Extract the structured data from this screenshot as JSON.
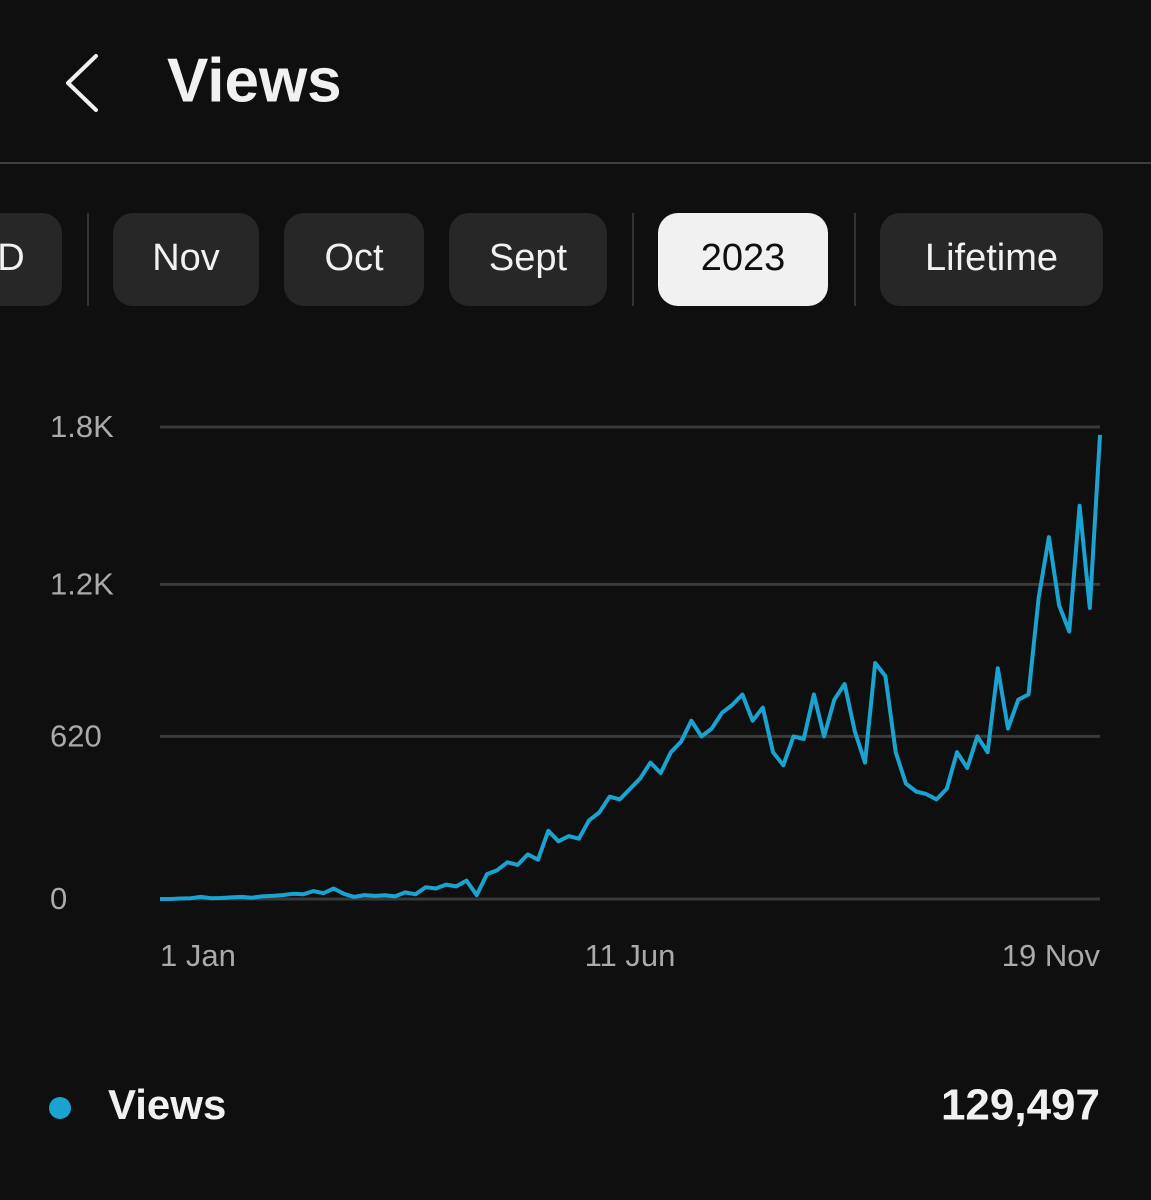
{
  "header": {
    "title": "Views"
  },
  "tabs": [
    {
      "label": "D",
      "active": false
    },
    {
      "label": "Nov",
      "active": false
    },
    {
      "label": "Oct",
      "active": false
    },
    {
      "label": "Sept",
      "active": false
    },
    {
      "label": "2023",
      "active": true
    },
    {
      "label": "Lifetime",
      "active": false
    }
  ],
  "chart_data": {
    "type": "line",
    "x": [
      "1 Jan",
      null,
      null,
      null,
      null,
      null,
      null,
      null,
      null,
      null,
      null,
      null,
      null,
      null,
      null,
      null,
      null,
      null,
      null,
      null,
      null,
      null,
      null,
      null,
      null,
      null,
      null,
      null,
      null,
      null,
      null,
      null,
      null,
      null,
      null,
      null,
      null,
      null,
      null,
      null,
      null,
      null,
      null,
      null,
      null,
      null,
      "11 Jun",
      null,
      null,
      null,
      null,
      null,
      null,
      null,
      null,
      null,
      null,
      null,
      null,
      null,
      null,
      null,
      null,
      null,
      null,
      null,
      null,
      null,
      null,
      null,
      null,
      null,
      null,
      null,
      null,
      null,
      null,
      null,
      null,
      null,
      null,
      null,
      null,
      null,
      null,
      null,
      null,
      null,
      null,
      null,
      null,
      null,
      "19 Nov"
    ],
    "series": [
      {
        "name": "Views",
        "color": "#1aa3d1",
        "values": [
          0,
          0,
          2,
          3,
          8,
          3,
          4,
          6,
          8,
          5,
          10,
          12,
          15,
          20,
          18,
          30,
          22,
          40,
          20,
          8,
          15,
          12,
          14,
          10,
          25,
          18,
          45,
          40,
          55,
          48,
          70,
          15,
          95,
          110,
          140,
          130,
          170,
          150,
          260,
          220,
          240,
          230,
          300,
          330,
          390,
          380,
          420,
          460,
          520,
          480,
          560,
          600,
          680,
          620,
          650,
          710,
          740,
          780,
          680,
          730,
          560,
          510,
          620,
          610,
          780,
          620,
          760,
          820,
          640,
          520,
          900,
          850,
          560,
          440,
          410,
          400,
          380,
          420,
          560,
          500,
          620,
          560,
          880,
          650,
          760,
          780,
          1150,
          1380,
          1120,
          1020,
          1500,
          1110,
          1770
        ]
      }
    ],
    "ylim": [
      0,
      1800
    ],
    "yticks": [
      0,
      620,
      {
        "value": 1200,
        "label": "1.2K"
      },
      {
        "value": 1800,
        "label": "1.8K"
      }
    ],
    "grid": true
  },
  "total": "129,497"
}
